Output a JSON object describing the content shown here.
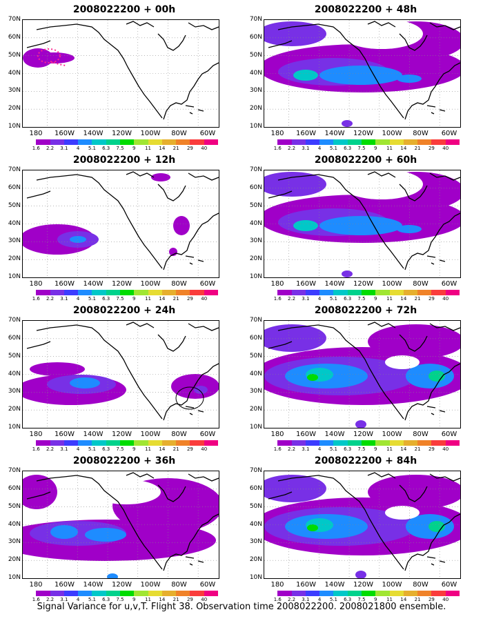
{
  "caption": "Signal Variance for u,v,T. Flight 38. Observation time 2008022200. 2008021800 ensemble.",
  "panels": [
    {
      "title": "2008022200 + 00h",
      "coverage": "initial"
    },
    {
      "title": "2008022200 + 12h",
      "coverage": "low"
    },
    {
      "title": "2008022200 + 24h",
      "coverage": "medium"
    },
    {
      "title": "2008022200 + 36h",
      "coverage": "medium-high"
    },
    {
      "title": "2008022200 + 48h",
      "coverage": "high"
    },
    {
      "title": "2008022200 + 60h",
      "coverage": "high"
    },
    {
      "title": "2008022200 + 72h",
      "coverage": "very-high"
    },
    {
      "title": "2008022200 + 84h",
      "coverage": "very-high"
    }
  ],
  "y_labels": [
    "70N",
    "60N",
    "50N",
    "40N",
    "30N",
    "20N",
    "10N"
  ],
  "x_labels": [
    "180",
    "160W",
    "140W",
    "120W",
    "100W",
    "80W",
    "60W"
  ],
  "colorbar": {
    "labels": [
      "1.6",
      "2.2",
      "3.1",
      "4",
      "5.1",
      "6.3",
      "7.5",
      "9",
      "11",
      "14",
      "21",
      "29",
      "40"
    ],
    "colors": [
      "#ffffff",
      "#a000c8",
      "#7830e6",
      "#3c3cff",
      "#1e8cff",
      "#00c8c8",
      "#00d28c",
      "#00dc00",
      "#a0e632",
      "#e6dc32",
      "#e6af2d",
      "#f08228",
      "#fa3c3c",
      "#f00082"
    ]
  },
  "colors": {
    "purple": "#a000c8",
    "violet": "#7830e6",
    "blue": "#3c3cff",
    "sky": "#1e8cff",
    "cyan": "#00c8c8",
    "teal": "#00d28c",
    "green": "#00dc00"
  }
}
